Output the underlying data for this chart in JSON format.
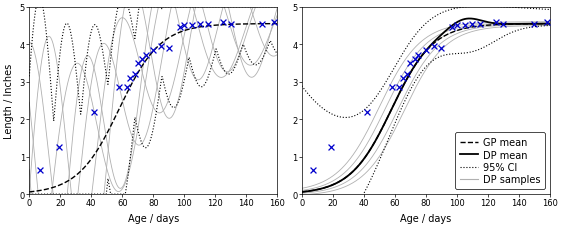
{
  "xlabel": "Age / days",
  "ylabel": "Length / Inches",
  "xlim": [
    0,
    160
  ],
  "ylim": [
    0,
    5
  ],
  "yticks": [
    0,
    1,
    2,
    3,
    4,
    5
  ],
  "xticks": [
    0,
    20,
    40,
    60,
    80,
    100,
    120,
    140,
    160
  ],
  "data_x": [
    7,
    19,
    42,
    58,
    63,
    65,
    68,
    70,
    73,
    75,
    80,
    85,
    90,
    97,
    100,
    105,
    110,
    115,
    125,
    130,
    150,
    158
  ],
  "data_y": [
    0.65,
    1.25,
    2.2,
    2.85,
    2.85,
    3.1,
    3.2,
    3.5,
    3.6,
    3.7,
    3.85,
    3.95,
    3.9,
    4.45,
    4.5,
    4.5,
    4.55,
    4.55,
    4.6,
    4.55,
    4.55,
    4.6
  ],
  "legend_labels": [
    "GP mean",
    "DP mean",
    "95% CI",
    "DP samples"
  ],
  "data_color": "#0000cc",
  "bg_color": "#ffffff",
  "fontsize_label": 7,
  "fontsize_tick": 6,
  "fontsize_legend": 7
}
